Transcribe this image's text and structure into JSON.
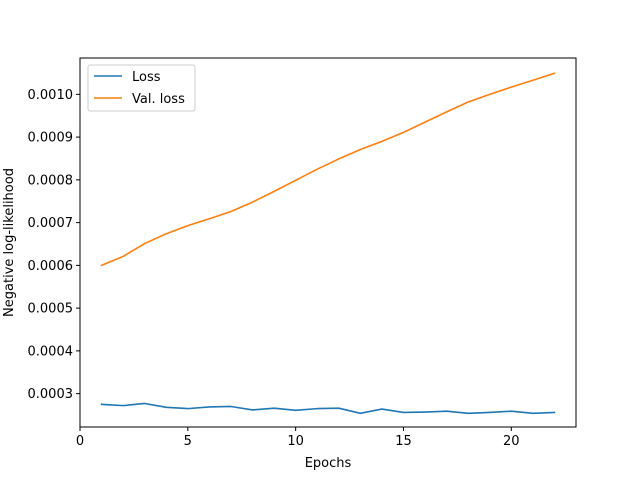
{
  "chart_data": {
    "type": "line",
    "title": "",
    "xlabel": "Epochs",
    "ylabel": "Negative log-likelihood",
    "xlim": [
      0,
      23
    ],
    "ylim": [
      0.000222,
      0.001085
    ],
    "xticks": [
      0,
      5,
      10,
      15,
      20
    ],
    "yticks": [
      0.0003,
      0.0004,
      0.0005,
      0.0006,
      0.0007,
      0.0008,
      0.0009,
      0.001
    ],
    "xtick_labels": [
      "0",
      "5",
      "10",
      "15",
      "20"
    ],
    "ytick_labels": [
      "0.0003",
      "0.0004",
      "0.0005",
      "0.0006",
      "0.0007",
      "0.0008",
      "0.0009",
      "0.0010"
    ],
    "grid": false,
    "legend_position": "top-left",
    "x": [
      1,
      2,
      3,
      4,
      5,
      6,
      7,
      8,
      9,
      10,
      11,
      12,
      13,
      14,
      15,
      16,
      17,
      18,
      19,
      20,
      21,
      22
    ],
    "series": [
      {
        "name": "Loss",
        "color": "#1f77b4",
        "values": [
          0.000275,
          0.000272,
          0.000277,
          0.000268,
          0.000265,
          0.000269,
          0.00027,
          0.000262,
          0.000266,
          0.000261,
          0.000265,
          0.000266,
          0.000254,
          0.000264,
          0.000256,
          0.000257,
          0.000259,
          0.000254,
          0.000256,
          0.000259,
          0.000254,
          0.000256
        ]
      },
      {
        "name": "Val. loss",
        "color": "#ff7f0e",
        "values": [
          0.0006,
          0.000621,
          0.000651,
          0.000674,
          0.000693,
          0.000709,
          0.000726,
          0.000748,
          0.000773,
          0.000799,
          0.000825,
          0.000849,
          0.000871,
          0.00089,
          0.000911,
          0.000935,
          0.000959,
          0.000982,
          0.001,
          0.001017,
          0.001033,
          0.001049
        ]
      }
    ]
  }
}
